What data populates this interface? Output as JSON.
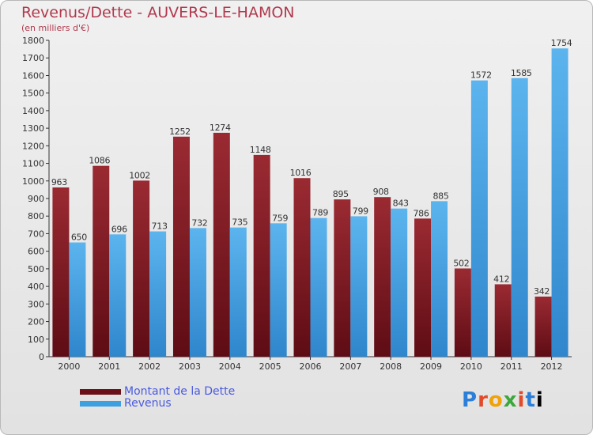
{
  "title": "Revenus/Dette - AUVERS-LE-HAMON",
  "subtitle": "(en milliers d'€)",
  "logo_text": "Proxiti",
  "colors": {
    "dette": "#7a1a22",
    "revenus": "#3d9ee0",
    "title": "#b03a4e",
    "legend_text": "#4a5ae0"
  },
  "chart_data": {
    "type": "bar",
    "title": "Revenus/Dette - AUVERS-LE-HAMON",
    "subtitle": "(en milliers d'€)",
    "categories": [
      "2000",
      "2001",
      "2002",
      "2003",
      "2004",
      "2005",
      "2006",
      "2007",
      "2008",
      "2009",
      "2010",
      "2011",
      "2012"
    ],
    "series": [
      {
        "name": "Montant de la Dette",
        "values": [
          963,
          1086,
          1002,
          1252,
          1274,
          1148,
          1016,
          895,
          908,
          786,
          502,
          412,
          342
        ]
      },
      {
        "name": "Revenus",
        "values": [
          650,
          696,
          713,
          732,
          735,
          759,
          789,
          799,
          843,
          885,
          1572,
          1585,
          1754
        ]
      }
    ],
    "ylim": [
      0,
      1800
    ],
    "ytick_step": 100,
    "grid": false,
    "legend_position": "bottom-left"
  }
}
